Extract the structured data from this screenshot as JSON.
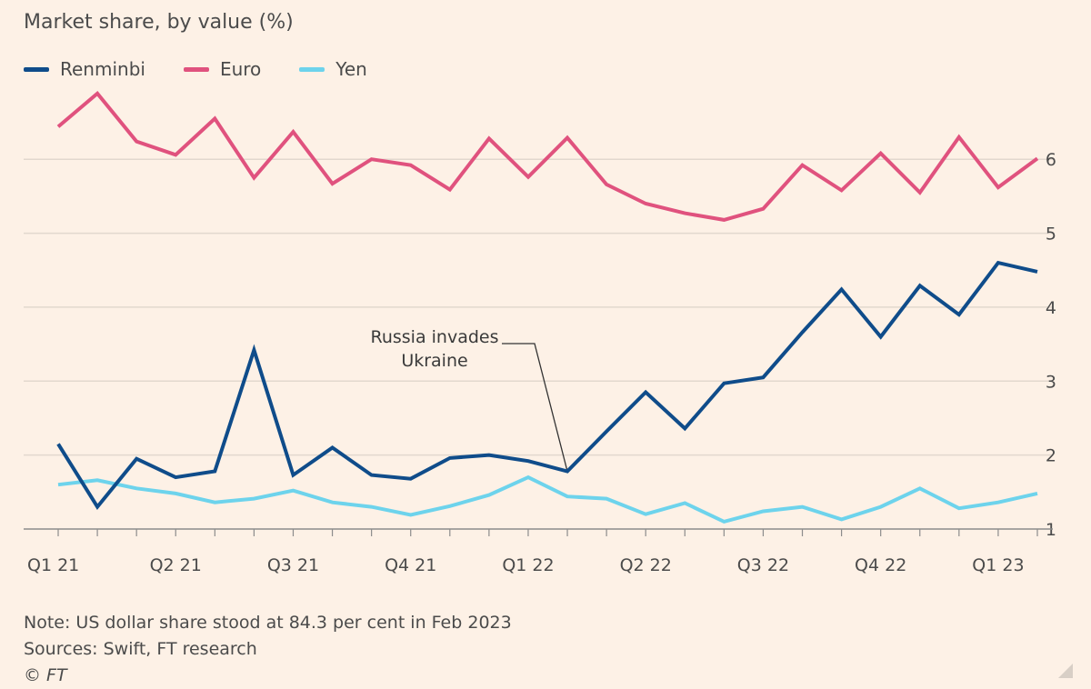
{
  "subtitle": "Market share, by value (%)",
  "notes": {
    "note": "Note: US dollar share stood at 84.3 per cent in Feb 2023",
    "sources": "Sources: Swift, FT research",
    "credit": "© FT"
  },
  "colors": {
    "background": "#fdf1e6",
    "renminbi": "#0f4c8a",
    "euro": "#e0527e",
    "yen": "#6dd3ec",
    "grid": "#e2d8ce",
    "text": "#4b4b4b"
  },
  "chart_data": {
    "type": "line",
    "title": "Market share, by value (%)",
    "x_tick_labels": [
      "Q1 21",
      "Q2 21",
      "Q3 21",
      "Q4 21",
      "Q1 22",
      "Q2 22",
      "Q3 22",
      "Q4 22",
      "Q1 23"
    ],
    "x_tick_index": [
      0,
      3,
      6,
      9,
      12,
      15,
      18,
      21,
      24
    ],
    "x": [
      "Jan 2021",
      "Feb 2021",
      "Mar 2021",
      "Apr 2021",
      "May 2021",
      "Jun 2021",
      "Jul 2021",
      "Aug 2021",
      "Sep 2021",
      "Oct 2021",
      "Nov 2021",
      "Dec 2021",
      "Jan 2022",
      "Feb 2022",
      "Mar 2022",
      "Apr 2022",
      "May 2022",
      "Jun 2022",
      "Jul 2022",
      "Aug 2022",
      "Sep 2022",
      "Oct 2022",
      "Nov 2022",
      "Dec 2022",
      "Jan 2023",
      "Feb 2023"
    ],
    "y_ticks": [
      1,
      2,
      3,
      4,
      5,
      6
    ],
    "ylim": [
      1,
      6.9
    ],
    "grid": true,
    "y_axis_position": "right",
    "legend_position": "top-left",
    "series": [
      {
        "name": "Renminbi",
        "color": "#0f4c8a",
        "values": [
          2.15,
          1.3,
          1.95,
          1.7,
          1.78,
          3.42,
          1.73,
          2.1,
          1.73,
          1.68,
          1.96,
          2.0,
          1.92,
          1.78,
          2.32,
          2.85,
          2.36,
          2.97,
          3.05,
          3.66,
          4.24,
          3.6,
          4.29,
          3.9,
          4.6,
          4.48
        ]
      },
      {
        "name": "Euro",
        "color": "#e0527e",
        "values": [
          6.44,
          6.89,
          6.24,
          6.06,
          6.55,
          5.75,
          6.37,
          5.67,
          6.0,
          5.92,
          5.59,
          6.28,
          5.76,
          6.29,
          5.66,
          5.4,
          5.27,
          5.18,
          5.33,
          5.92,
          5.58,
          6.08,
          5.55,
          6.3,
          5.62,
          6.01
        ]
      },
      {
        "name": "Yen",
        "color": "#6dd3ec",
        "values": [
          1.6,
          1.66,
          1.55,
          1.48,
          1.36,
          1.41,
          1.52,
          1.36,
          1.3,
          1.19,
          1.31,
          1.46,
          1.7,
          1.44,
          1.41,
          1.2,
          1.35,
          1.1,
          1.24,
          1.3,
          1.13,
          1.3,
          1.55,
          1.28,
          1.36,
          1.48
        ]
      }
    ],
    "annotations": [
      {
        "text": [
          "Russia invades",
          "Ukraine"
        ],
        "x_index": 13
      }
    ]
  }
}
